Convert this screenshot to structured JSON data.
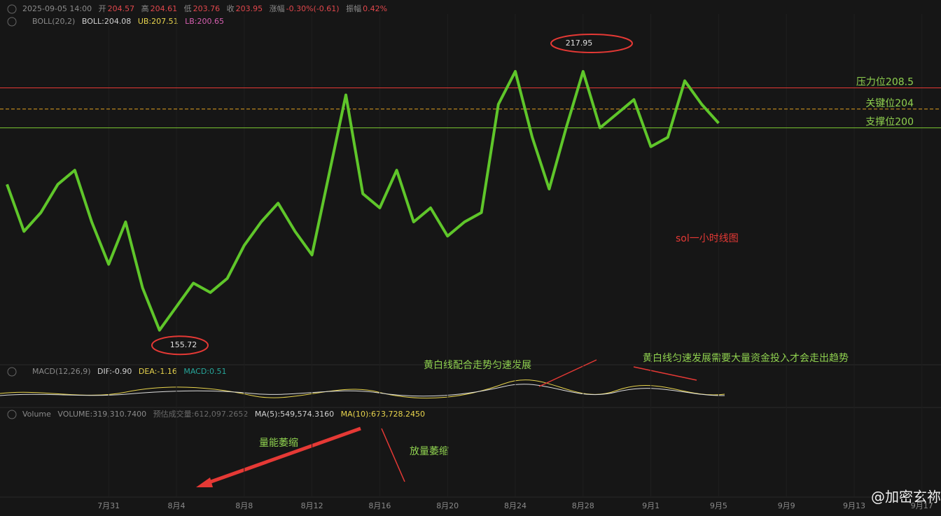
{
  "header": {
    "datetime": "2025-09-05 14:00",
    "open_label": "开",
    "open": "204.57",
    "high_label": "高",
    "high": "204.61",
    "low_label": "低",
    "low": "203.76",
    "close_label": "收",
    "close": "203.95",
    "change_label": "涨幅",
    "change": "-0.30%(-0.61)",
    "amplitude_label": "振幅",
    "amplitude": "0.42%"
  },
  "boll": {
    "name": "BOLL(20,2)",
    "mid": "BOLL:204.08",
    "ub": "UB:207.51",
    "lb": "LB:200.65"
  },
  "macd": {
    "name": "MACD(12,26,9)",
    "dif": "DIF:-0.90",
    "dea": "DEA:-1.16",
    "macd": "MACD:0.51"
  },
  "volume": {
    "name": "Volume",
    "volume": "VOLUME:319,310.7400",
    "estimate": "预估成交量:612,097.2652",
    "ma5": "MA(5):549,574.3160",
    "ma10": "MA(10):673,728.2450"
  },
  "chart_data": {
    "type": "line",
    "color": "#5fc62a",
    "categories": [
      null,
      null,
      null,
      null,
      null,
      null,
      "7月31",
      null,
      null,
      null,
      "8月4",
      null,
      null,
      null,
      "8月8",
      null,
      null,
      null,
      "8月12",
      null,
      null,
      null,
      "8月16",
      null,
      null,
      null,
      "8月20",
      null,
      null,
      null,
      "8月24",
      null,
      null,
      null,
      "8月28",
      null,
      null,
      null,
      "9月1",
      null,
      null,
      null,
      "9月5",
      null,
      null,
      null,
      "9月9",
      null,
      null,
      null,
      "9月13",
      null,
      null,
      null,
      "9月17"
    ],
    "values": [
      188,
      178,
      182,
      188,
      191,
      180,
      171,
      180,
      166,
      157,
      162,
      167,
      165,
      168,
      175,
      180,
      184,
      178,
      173,
      190,
      207,
      186,
      183,
      191,
      180,
      183,
      177,
      180,
      182,
      205,
      212,
      198,
      187,
      200,
      212,
      200,
      203,
      206,
      196,
      198,
      210,
      205,
      201,
      null,
      null,
      null,
      null,
      null,
      null,
      null,
      null,
      null,
      null,
      null,
      null
    ],
    "ylim": [
      149.8,
      224.2
    ],
    "high": 217.95,
    "low": 155.72,
    "levels": [
      {
        "label": "压力位208.5",
        "value": 208.5,
        "color": "#e53935"
      },
      {
        "label": "关键位204",
        "value": 204,
        "color": "#e0a020"
      },
      {
        "label": "支撑位200",
        "value": 200,
        "color": "#7ec832"
      }
    ]
  },
  "annotations": {
    "chart_name": "sol一小时线图",
    "macd_note": "黄白线配合走势匀速发展",
    "trend_note": "黄白线匀速发展需要大量资金投入才会走出趋势",
    "volume_shrink": "量能萎缩",
    "volume_up_shrink": "放量萎缩"
  },
  "watermark": "@加密玄祢"
}
